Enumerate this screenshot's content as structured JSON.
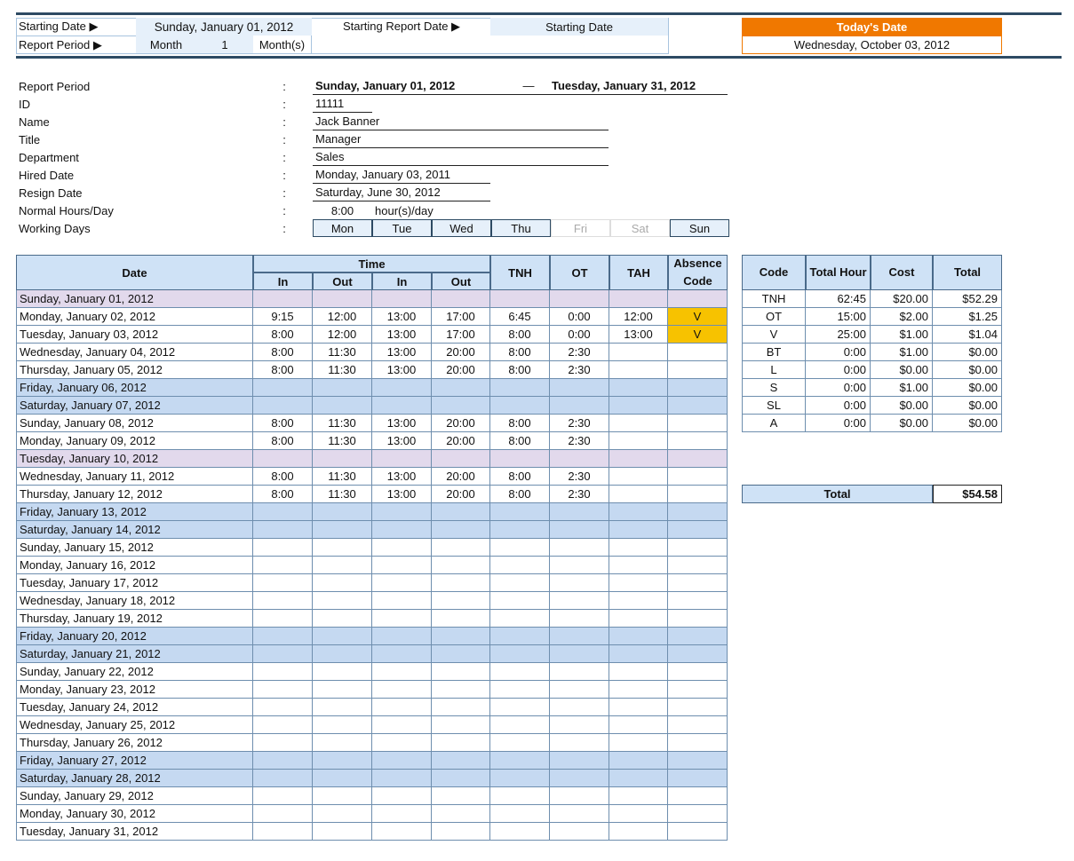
{
  "settings": {
    "starting_date_label": "Starting Date ▶",
    "starting_date": "Sunday, January 01, 2012",
    "starting_report_label": "Starting Report Date ▶",
    "starting_report_value": "Starting Date",
    "report_period_label": "Report Period ▶",
    "period_unit": "Month",
    "period_count": "1",
    "period_suffix": "Month(s)"
  },
  "today": {
    "label": "Today's Date",
    "value": "Wednesday, October 03, 2012",
    "color": "#f07800"
  },
  "info": {
    "labels": [
      "Report Period",
      "ID",
      "Name",
      "Title",
      "Department",
      "Hired Date",
      "Resign Date",
      "Normal Hours/Day",
      "Working Days"
    ],
    "colon": ":",
    "period_start": "Sunday, January 01, 2012",
    "period_dash": "—",
    "period_end": "Tuesday, January 31, 2012",
    "id": "11111",
    "name": "Jack Banner",
    "title": "Manager",
    "department": "Sales",
    "hired": "Monday, January 03, 2011",
    "resign": "Saturday, June 30, 2012",
    "hours": "8:00",
    "hours_unit": "hour(s)/day",
    "days": [
      {
        "d": "Mon",
        "on": true
      },
      {
        "d": "Tue",
        "on": true
      },
      {
        "d": "Wed",
        "on": true
      },
      {
        "d": "Thu",
        "on": true
      },
      {
        "d": "Fri",
        "on": false
      },
      {
        "d": "Sat",
        "on": false
      },
      {
        "d": "Sun",
        "on": true
      }
    ]
  },
  "timesheet": {
    "headers": {
      "date": "Date",
      "time": "Time",
      "in1": "In",
      "out1": "Out",
      "in2": "In",
      "out2": "Out",
      "tnh": "TNH",
      "ot": "OT",
      "tah": "TAH",
      "absence": "Absence Code"
    },
    "rows": [
      {
        "date": "Sunday, January 01, 2012",
        "type": "holiday"
      },
      {
        "date": "Monday, January 02, 2012",
        "v": [
          "9:15",
          "12:00",
          "13:00",
          "17:00",
          "6:45",
          "0:00",
          "12:00",
          "V"
        ]
      },
      {
        "date": "Tuesday, January 03, 2012",
        "v": [
          "8:00",
          "12:00",
          "13:00",
          "17:00",
          "8:00",
          "0:00",
          "13:00",
          "V"
        ]
      },
      {
        "date": "Wednesday, January 04, 2012",
        "v": [
          "8:00",
          "11:30",
          "13:00",
          "20:00",
          "8:00",
          "2:30",
          "",
          ""
        ]
      },
      {
        "date": "Thursday, January 05, 2012",
        "v": [
          "8:00",
          "11:30",
          "13:00",
          "20:00",
          "8:00",
          "2:30",
          "",
          ""
        ]
      },
      {
        "date": "Friday, January 06, 2012",
        "type": "weekend"
      },
      {
        "date": "Saturday, January 07, 2012",
        "type": "weekend"
      },
      {
        "date": "Sunday, January 08, 2012",
        "v": [
          "8:00",
          "11:30",
          "13:00",
          "20:00",
          "8:00",
          "2:30",
          "",
          ""
        ]
      },
      {
        "date": "Monday, January 09, 2012",
        "v": [
          "8:00",
          "11:30",
          "13:00",
          "20:00",
          "8:00",
          "2:30",
          "",
          ""
        ]
      },
      {
        "date": "Tuesday, January 10, 2012",
        "type": "holiday"
      },
      {
        "date": "Wednesday, January 11, 2012",
        "v": [
          "8:00",
          "11:30",
          "13:00",
          "20:00",
          "8:00",
          "2:30",
          "",
          ""
        ]
      },
      {
        "date": "Thursday, January 12, 2012",
        "v": [
          "8:00",
          "11:30",
          "13:00",
          "20:00",
          "8:00",
          "2:30",
          "",
          ""
        ]
      },
      {
        "date": "Friday, January 13, 2012",
        "type": "weekend"
      },
      {
        "date": "Saturday, January 14, 2012",
        "type": "weekend"
      },
      {
        "date": "Sunday, January 15, 2012"
      },
      {
        "date": "Monday, January 16, 2012"
      },
      {
        "date": "Tuesday, January 17, 2012"
      },
      {
        "date": "Wednesday, January 18, 2012"
      },
      {
        "date": "Thursday, January 19, 2012"
      },
      {
        "date": "Friday, January 20, 2012",
        "type": "weekend"
      },
      {
        "date": "Saturday, January 21, 2012",
        "type": "weekend"
      },
      {
        "date": "Sunday, January 22, 2012"
      },
      {
        "date": "Monday, January 23, 2012"
      },
      {
        "date": "Tuesday, January 24, 2012"
      },
      {
        "date": "Wednesday, January 25, 2012"
      },
      {
        "date": "Thursday, January 26, 2012"
      },
      {
        "date": "Friday, January 27, 2012",
        "type": "weekend"
      },
      {
        "date": "Saturday, January 28, 2012",
        "type": "weekend"
      },
      {
        "date": "Sunday, January 29, 2012"
      },
      {
        "date": "Monday, January 30, 2012"
      },
      {
        "date": "Tuesday, January 31, 2012"
      }
    ]
  },
  "summary": {
    "headers": [
      "Code",
      "Total Hour",
      "Cost",
      "Total"
    ],
    "rows": [
      [
        "TNH",
        "62:45",
        "$20.00",
        "$52.29"
      ],
      [
        "OT",
        "15:00",
        "$2.00",
        "$1.25"
      ],
      [
        "V",
        "25:00",
        "$1.00",
        "$1.04"
      ],
      [
        "BT",
        "0:00",
        "$1.00",
        "$0.00"
      ],
      [
        "L",
        "0:00",
        "$0.00",
        "$0.00"
      ],
      [
        "S",
        "0:00",
        "$1.00",
        "$0.00"
      ],
      [
        "SL",
        "0:00",
        "$0.00",
        "$0.00"
      ],
      [
        "A",
        "0:00",
        "$0.00",
        "$0.00"
      ]
    ],
    "total_label": "Total",
    "total_value": "$54.58"
  }
}
